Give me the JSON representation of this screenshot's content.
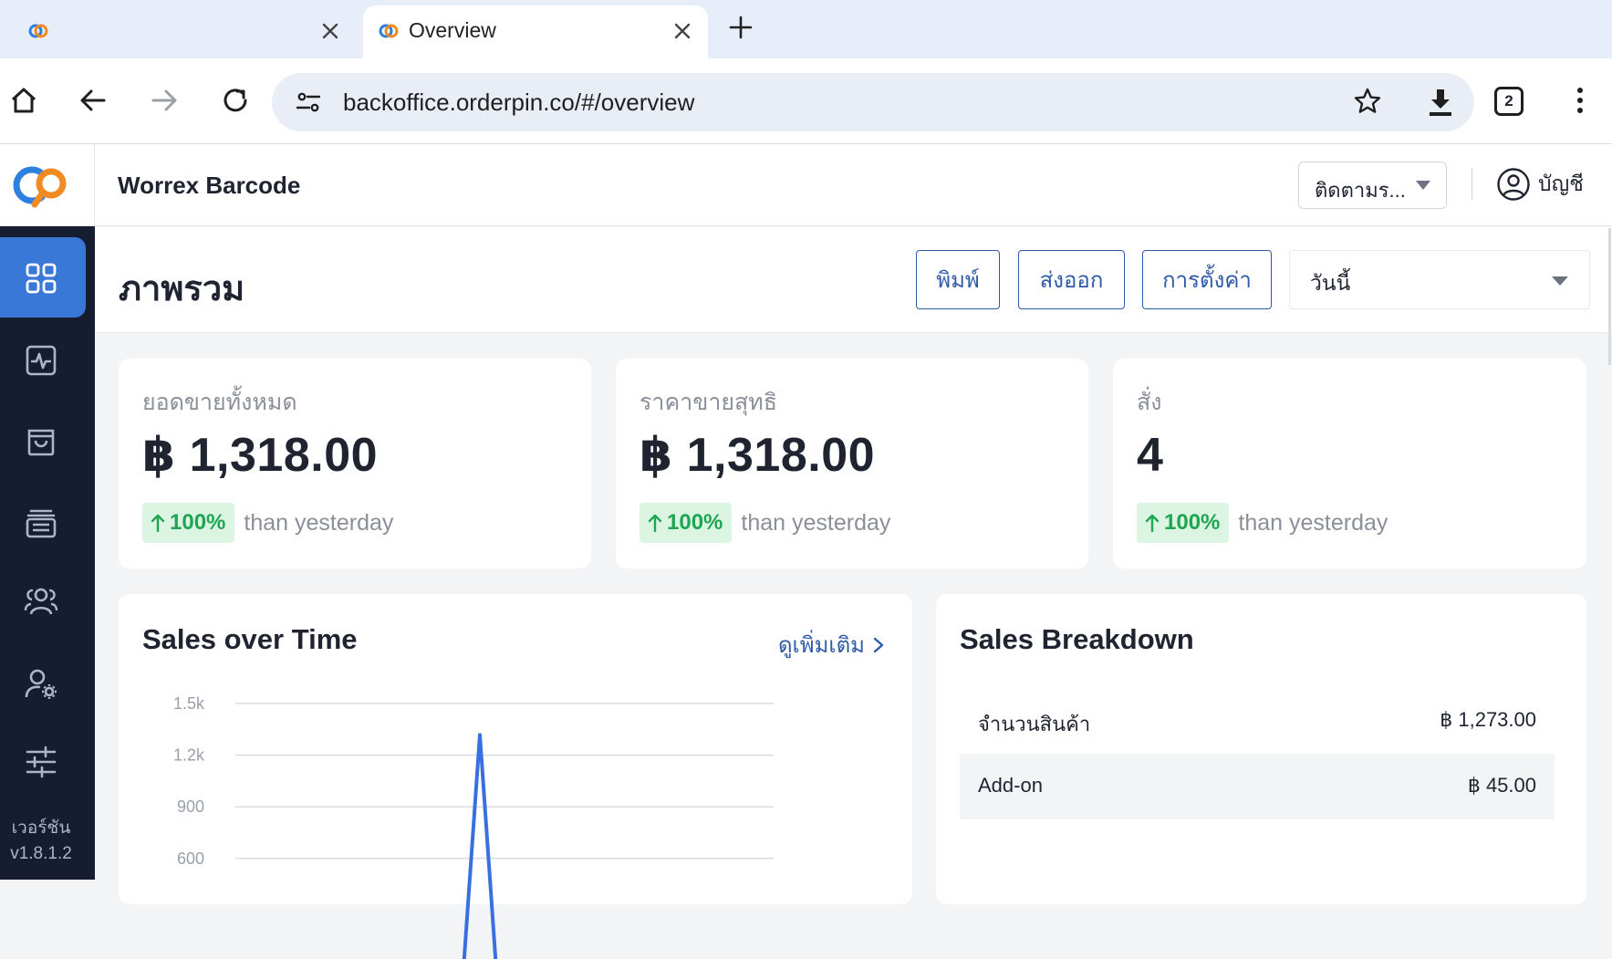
{
  "browser": {
    "tabs": [
      {
        "title": "",
        "active": false
      },
      {
        "title": "Overview",
        "active": true
      }
    ],
    "url": "backoffice.orderpin.co/#/overview",
    "tab_count": "2"
  },
  "header": {
    "store_name": "Worrex Barcode",
    "track_select": "ติดตามร...",
    "account_label": "บัญชี"
  },
  "sidebar": {
    "items": [
      {
        "icon": "dashboard-grid-icon",
        "active": true
      },
      {
        "icon": "activity-icon",
        "active": false
      },
      {
        "icon": "shopping-bag-icon",
        "active": false
      },
      {
        "icon": "inventory-archive-icon",
        "active": false
      },
      {
        "icon": "customers-group-icon",
        "active": false
      },
      {
        "icon": "staff-settings-icon",
        "active": false
      },
      {
        "icon": "adjustments-sliders-icon",
        "active": false
      }
    ],
    "version_label": "เวอร์ชัน",
    "version_number": "v1.8.1.2"
  },
  "page": {
    "title": "ภาพรวม",
    "print_button": "พิมพ์",
    "export_button": "ส่งออก",
    "settings_button": "การตั้งค่า",
    "date_range": "วันนี้"
  },
  "metrics": [
    {
      "label": "ยอดขายทั้งหมด",
      "value": "฿ 1,318.00",
      "delta": "100%",
      "delta_text": "than yesterday"
    },
    {
      "label": "ราคาขายสุทธิ",
      "value": "฿ 1,318.00",
      "delta": "100%",
      "delta_text": "than yesterday"
    },
    {
      "label": "สั่ง",
      "value": "4",
      "delta": "100%",
      "delta_text": "than yesterday"
    }
  ],
  "sales_over_time": {
    "title": "Sales over Time",
    "see_more": "ดูเพิ่มเติม"
  },
  "chart_data": {
    "type": "line",
    "title": "Sales over Time",
    "xlabel": "",
    "ylabel": "",
    "y_ticks": [
      "1.5k",
      "1.2k",
      "900",
      "600"
    ],
    "ylim": [
      400,
      1500
    ],
    "grid": true,
    "series": [
      {
        "values": [
          0,
          0,
          0,
          0,
          1318,
          0,
          0,
          0,
          0,
          0,
          0,
          0
        ]
      }
    ],
    "colors": {
      "line": "#3a6fe0",
      "grid": "#d9dce1",
      "tick": "#9aa0a8"
    }
  },
  "sales_breakdown": {
    "title": "Sales Breakdown",
    "rows": [
      {
        "name": "จำนวนสินค้า",
        "value": "฿ 1,273.00"
      },
      {
        "name": "Add-on",
        "value": "฿ 45.00"
      }
    ]
  },
  "colors": {
    "accent": "#2f5aa8",
    "sidebar_bg": "#161d31",
    "sidebar_active": "#3a78d8",
    "positive": "#1fa653",
    "positive_bg": "#dcf5e3"
  }
}
